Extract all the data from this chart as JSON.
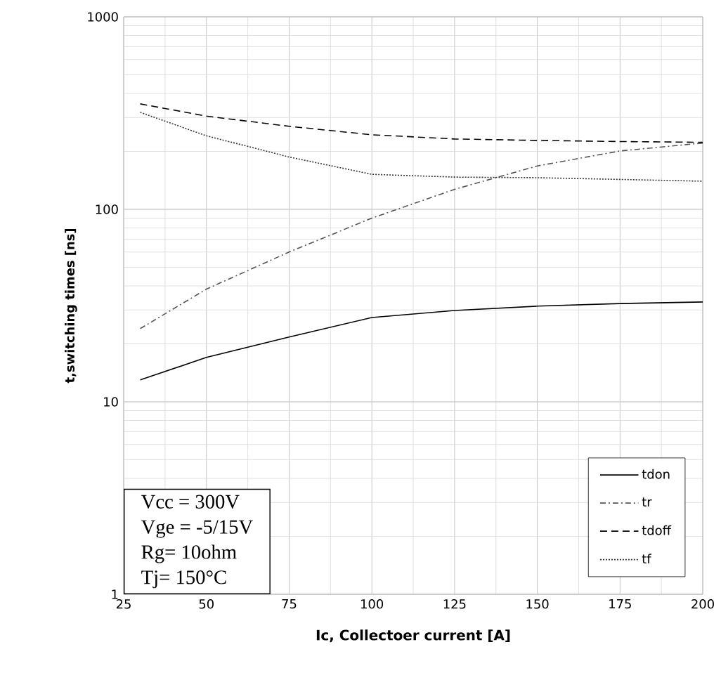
{
  "chart_data": {
    "type": "line",
    "xlabel": "Ic, Collectoer current [A]",
    "ylabel": "t,switching times [ns]",
    "x": [
      30,
      50,
      75,
      100,
      125,
      150,
      175,
      200
    ],
    "series": [
      {
        "name": "tdon",
        "color": "#000000",
        "line_style": "solid",
        "values": [
          13,
          17,
          21.7,
          27.4,
          29.8,
          31.4,
          32.4,
          33
        ]
      },
      {
        "name": "tr",
        "color": "#555555",
        "line_style": "dashdot",
        "values": [
          24,
          38.5,
          60,
          90,
          127,
          168,
          201,
          221
        ]
      },
      {
        "name": "tdoff",
        "color": "#000000",
        "line_style": "dashed",
        "values": [
          353,
          305,
          270,
          244,
          232,
          228,
          225,
          223
        ]
      },
      {
        "name": "tf",
        "color": "#333333",
        "line_style": "dotted",
        "values": [
          319,
          241,
          187,
          152,
          147,
          146,
          143,
          140
        ]
      }
    ],
    "xlim": [
      25,
      200
    ],
    "ylim": [
      1,
      1000
    ],
    "xticks": [
      25,
      50,
      75,
      100,
      125,
      150,
      175,
      200
    ],
    "yticks": [
      1,
      10,
      100,
      1000
    ],
    "log": "y",
    "grid": true,
    "legend": "bottom right",
    "marker": "none",
    "annotations": [
      "Vcc = 300V",
      "Vge = -5/15V",
      "Rg= 10ohm",
      "Tj= 150°C"
    ]
  }
}
